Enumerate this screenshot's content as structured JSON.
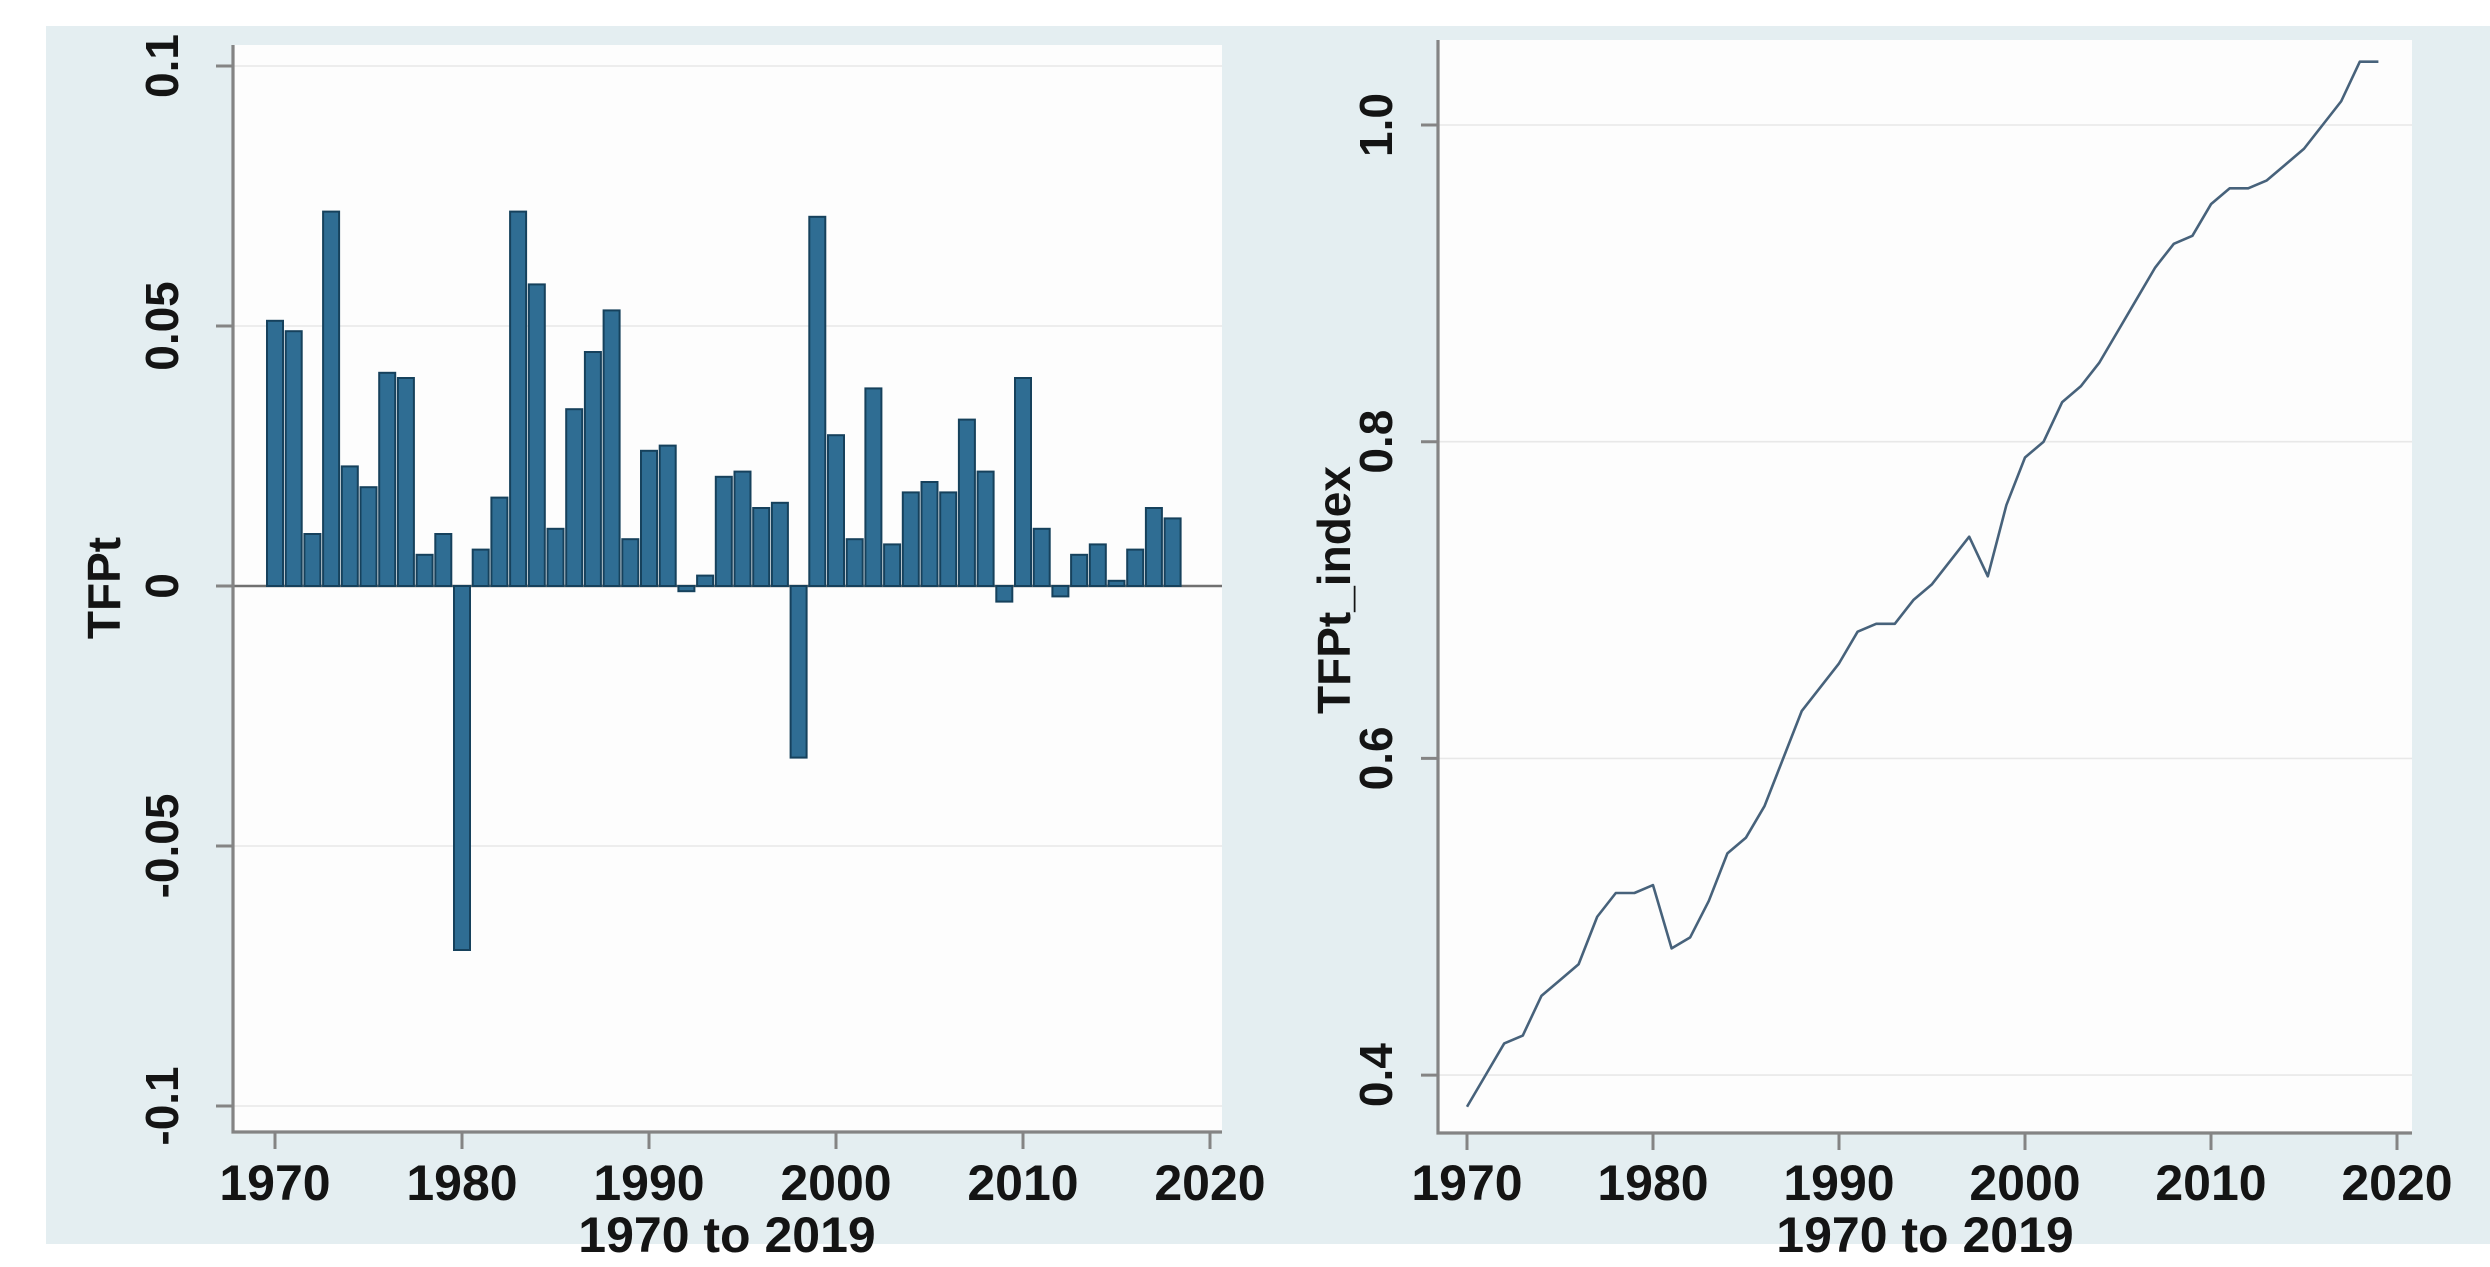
{
  "figure": {
    "background_color": "#e4eef1",
    "plot_background_color": "#fdfdfd",
    "axis_color": "#848484",
    "grid_color": "#e8e8e8",
    "zero_line_color": "#707070",
    "text_color": "#141414"
  },
  "chart_data": [
    {
      "type": "bar",
      "title": "",
      "ylabel": "TFPt",
      "xlabel": "1970 to 2019",
      "x": [
        1970,
        1971,
        1972,
        1973,
        1974,
        1975,
        1976,
        1977,
        1978,
        1979,
        1980,
        1981,
        1982,
        1983,
        1984,
        1985,
        1986,
        1987,
        1988,
        1989,
        1990,
        1991,
        1992,
        1993,
        1994,
        1995,
        1996,
        1997,
        1998,
        1999,
        2000,
        2001,
        2002,
        2003,
        2004,
        2005,
        2006,
        2007,
        2008,
        2009,
        2010,
        2011,
        2012,
        2013,
        2014,
        2015,
        2016,
        2017,
        2018,
        2019
      ],
      "values": [
        0.051,
        0.049,
        0.01,
        0.072,
        0.023,
        0.019,
        0.041,
        0.04,
        0.006,
        0.01,
        -0.07,
        0.007,
        0.017,
        0.072,
        0.058,
        0.011,
        0.034,
        0.045,
        0.053,
        0.009,
        0.026,
        0.027,
        -0.001,
        0.002,
        0.021,
        0.022,
        0.015,
        0.016,
        -0.033,
        0.071,
        0.029,
        0.009,
        0.038,
        0.008,
        0.018,
        0.02,
        0.018,
        0.032,
        0.022,
        -0.003,
        0.04,
        0.011,
        -0.002,
        0.006,
        0.008,
        0.001,
        0.007,
        0.015,
        0.013,
        0.0
      ],
      "ylim": [
        -0.1,
        0.1
      ],
      "yticks": [
        0.1,
        0.05,
        0,
        -0.05,
        -0.1
      ],
      "ytick_labels": [
        "0.1",
        "0.05",
        "0",
        "-0.05",
        "-0.1"
      ],
      "xticks": [
        1970,
        1980,
        1990,
        2000,
        2010,
        2020
      ],
      "xtick_labels": [
        "1970",
        "1980",
        "1990",
        "2000",
        "2010",
        "2020"
      ],
      "bar_color": "#2f6d93",
      "bar_edge_color": "#16415c",
      "zero_line": true,
      "grid": true,
      "legend": "none"
    },
    {
      "type": "line",
      "title": "",
      "ylabel": "TFPt_index",
      "xlabel": "1970 to 2019",
      "x": [
        1970,
        1971,
        1972,
        1973,
        1974,
        1975,
        1976,
        1977,
        1978,
        1979,
        1980,
        1981,
        1982,
        1983,
        1984,
        1985,
        1986,
        1987,
        1988,
        1989,
        1990,
        1991,
        1992,
        1993,
        1994,
        1995,
        1996,
        1997,
        1998,
        1999,
        2000,
        2001,
        2002,
        2003,
        2004,
        2005,
        2006,
        2007,
        2008,
        2009,
        2010,
        2011,
        2012,
        2013,
        2014,
        2015,
        2016,
        2017,
        2018,
        2019
      ],
      "values": [
        0.38,
        0.4,
        0.42,
        0.425,
        0.45,
        0.46,
        0.47,
        0.5,
        0.515,
        0.515,
        0.52,
        0.48,
        0.487,
        0.51,
        0.54,
        0.55,
        0.57,
        0.6,
        0.63,
        0.645,
        0.66,
        0.68,
        0.685,
        0.685,
        0.7,
        0.71,
        0.725,
        0.74,
        0.715,
        0.76,
        0.79,
        0.8,
        0.825,
        0.835,
        0.85,
        0.87,
        0.89,
        0.91,
        0.925,
        0.93,
        0.95,
        0.96,
        0.96,
        0.965,
        0.975,
        0.985,
        1.0,
        1.015,
        1.04,
        1.04
      ],
      "ylim": [
        0.36,
        1.06
      ],
      "yticks": [
        1.0,
        0.8,
        0.6,
        0.4
      ],
      "ytick_labels": [
        "1.0",
        "0.8",
        "0.6",
        "0.4"
      ],
      "xticks": [
        1970,
        1980,
        1990,
        2000,
        2010,
        2020
      ],
      "xtick_labels": [
        "1970",
        "1980",
        "1990",
        "2000",
        "2010",
        "2020"
      ],
      "line_color": "#47627b",
      "grid": true,
      "legend": "none"
    }
  ]
}
